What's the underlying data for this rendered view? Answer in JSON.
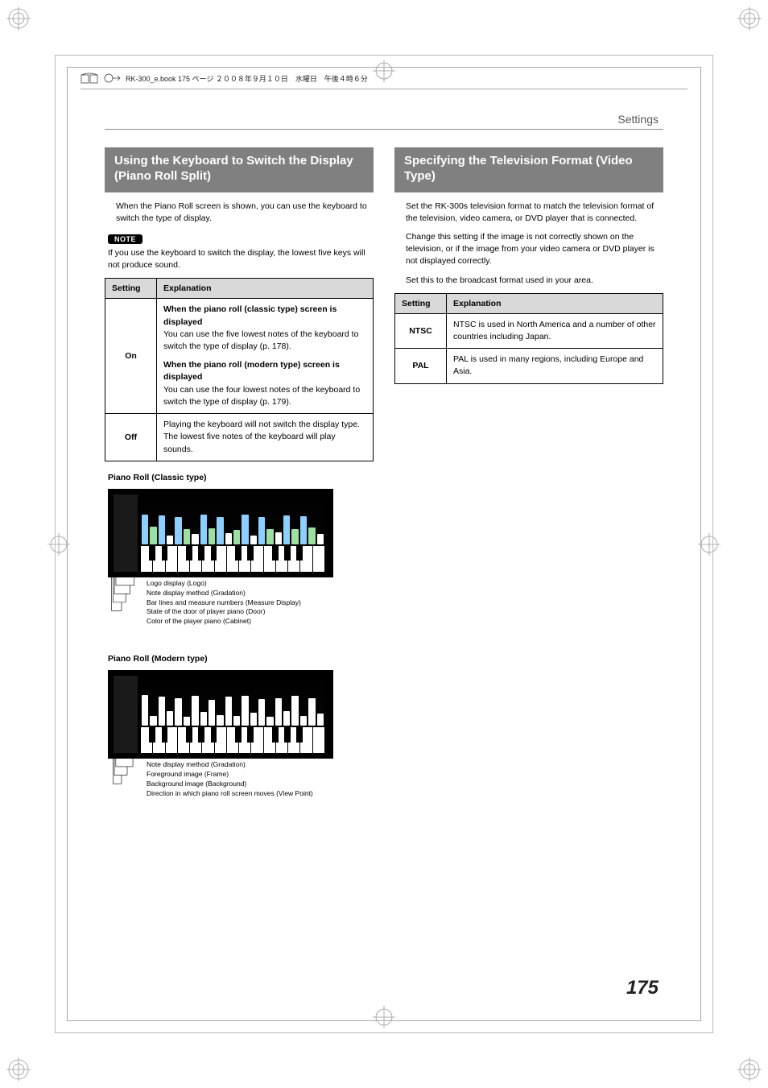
{
  "bookHeader": "RK-300_e.book  175 ページ  ２００８年９月１０日　水曜日　午後４時６分",
  "runningHead": "Settings",
  "pageNumber": "175",
  "left": {
    "title": "Using the Keyboard to Switch the Display (Piano Roll Split)",
    "intro": "When the Piano Roll screen is shown, you can use the keyboard to switch the type of display.",
    "noteLabel": "NOTE",
    "noteText": "If you use the keyboard to switch the display, the lowest five keys will not produce sound.",
    "table": {
      "head": {
        "c1": "Setting",
        "c2": "Explanation"
      },
      "rows": [
        {
          "setting": "On",
          "blocks": [
            {
              "head": "When the piano roll (classic type) screen is displayed",
              "body": "You can use the five lowest notes of the keyboard to switch the type of display (p. 178)."
            },
            {
              "head": "When the piano roll (modern type) screen is displayed",
              "body": "You can use the four lowest notes of the keyboard to switch the type of display (p. 179)."
            }
          ]
        },
        {
          "setting": "Off",
          "blocks": [
            {
              "head": "",
              "body": "Playing the keyboard will not switch the display type. The lowest five notes of the keyboard will play sounds."
            }
          ]
        }
      ]
    },
    "classic": {
      "caption": "Piano Roll (Classic type)",
      "bars": {
        "colors": [
          "#8dd0ff",
          "#9be0a0",
          "#8dd0ff",
          "#ffffff",
          "#8dd0ff",
          "#9be0a0",
          "#ffffff",
          "#8dd0ff",
          "#9be0a0",
          "#8dd0ff",
          "#ffffff",
          "#9be0a0",
          "#8dd0ff",
          "#ffffff",
          "#8dd0ff",
          "#9be0a0",
          "#ffffff",
          "#8dd0ff",
          "#9be0a0",
          "#8dd0ff",
          "#9be0a0",
          "#ffffff"
        ],
        "heights": [
          60,
          35,
          58,
          18,
          55,
          30,
          20,
          60,
          32,
          54,
          22,
          28,
          60,
          18,
          55,
          30,
          24,
          58,
          30,
          56,
          34,
          20
        ]
      },
      "callouts": [
        "Logo display (Logo)",
        "Note display method (Gradation)",
        "Bar lines and measure numbers (Measure Display)",
        "State of the door of player piano (Door)",
        "Color of the player piano (Cabinet)"
      ]
    },
    "modern": {
      "caption": "Piano Roll (Modern type)",
      "bars": {
        "heights": [
          62,
          20,
          58,
          30,
          55,
          18,
          60,
          28,
          52,
          22,
          58,
          20,
          60,
          26,
          54,
          18,
          56,
          30,
          60,
          20,
          55,
          24
        ]
      },
      "callouts": [
        "Note display method (Gradation)",
        "Foreground image (Frame)",
        "Background image (Background)",
        "Direction in which piano roll screen moves (View Point)"
      ]
    }
  },
  "right": {
    "title": "Specifying the Television Format (Video Type)",
    "p1": "Set the RK-300s television format to match the television format of the television, video camera, or DVD player that is connected.",
    "p2": "Change this setting if the image is not correctly shown on the television, or if the image from your video camera or DVD player is not displayed correctly.",
    "p3": "Set this to the broadcast format used in your area.",
    "table": {
      "head": {
        "c1": "Setting",
        "c2": "Explanation"
      },
      "rows": [
        {
          "setting": "NTSC",
          "exp": "NTSC is used in North America and a number of other countries including Japan."
        },
        {
          "setting": "PAL",
          "exp": "PAL is used in many regions, including Europe and Asia."
        }
      ]
    }
  }
}
